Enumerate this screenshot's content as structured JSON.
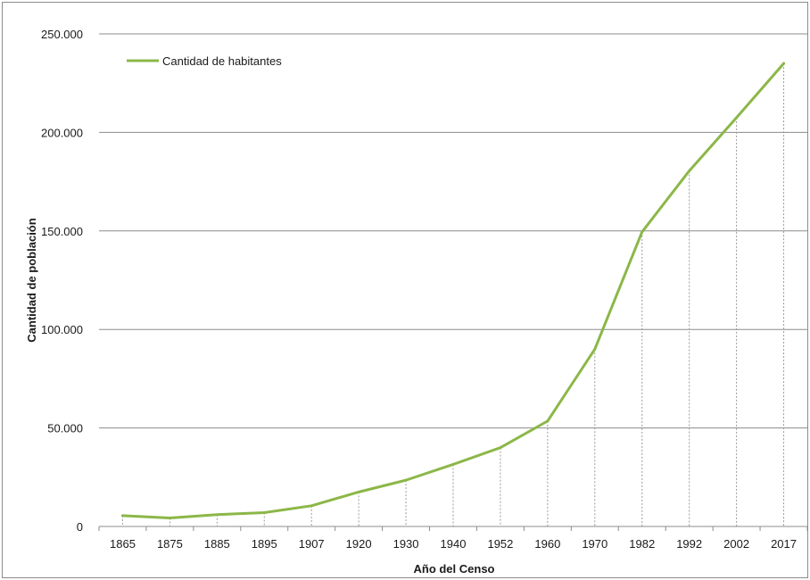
{
  "chart_data": {
    "type": "line",
    "title": "",
    "xlabel": "Año del Censo",
    "ylabel": "Cantidad de población",
    "categories": [
      "1865",
      "1875",
      "1885",
      "1895",
      "1907",
      "1920",
      "1930",
      "1940",
      "1952",
      "1960",
      "1970",
      "1982",
      "1992",
      "2002",
      "2017"
    ],
    "series": [
      {
        "name": "Cantidad de habitantes",
        "values": [
          5500,
          4300,
          6000,
          7000,
          10500,
          17500,
          23500,
          31500,
          40000,
          53500,
          90000,
          149500,
          180500,
          207500,
          235000
        ]
      }
    ],
    "ylim": [
      0,
      250000
    ],
    "yticks": [
      0,
      50000,
      100000,
      150000,
      200000,
      250000
    ],
    "ytick_labels": [
      "0",
      "50.000",
      "100.000",
      "150.000",
      "200.000",
      "250.000"
    ],
    "grid": "horizontal",
    "drop_lines": true,
    "legend_position": "top-left",
    "colors": {
      "series": "#8cb748",
      "grid": "#8c8c8c",
      "drop_line": "#9a9a9a"
    }
  }
}
